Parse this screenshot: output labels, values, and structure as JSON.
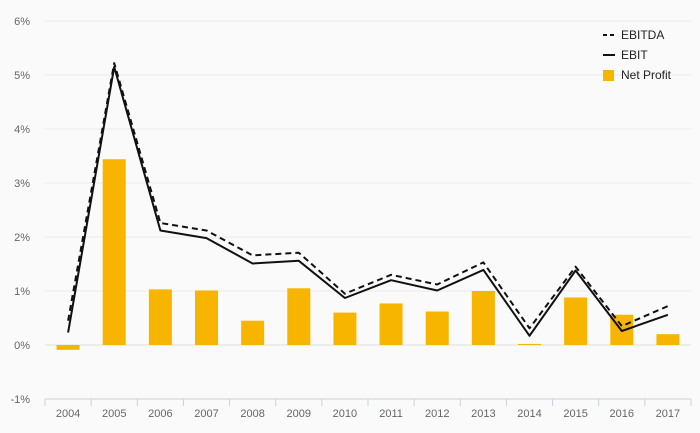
{
  "chart_data": {
    "type": "bar",
    "categories": [
      "2004",
      "2005",
      "2006",
      "2007",
      "2008",
      "2009",
      "2010",
      "2011",
      "2012",
      "2013",
      "2014",
      "2015",
      "2016",
      "2017"
    ],
    "y_ticks": [
      "-1%",
      "0%",
      "1%",
      "2%",
      "3%",
      "4%",
      "5%",
      "6%"
    ],
    "ylim": [
      -1,
      6
    ],
    "grid": true,
    "legend_position": "top-right",
    "series": [
      {
        "name": "EBITDA",
        "type": "line",
        "style": "dashed",
        "color": "#111111",
        "values": [
          0.45,
          5.22,
          2.26,
          2.12,
          1.66,
          1.71,
          0.95,
          1.3,
          1.12,
          1.53,
          0.31,
          1.45,
          0.35,
          0.72
        ]
      },
      {
        "name": "EBIT",
        "type": "line",
        "style": "solid",
        "color": "#111111",
        "values": [
          0.23,
          5.15,
          2.12,
          1.98,
          1.51,
          1.56,
          0.87,
          1.2,
          1.01,
          1.39,
          0.17,
          1.38,
          0.26,
          0.56
        ]
      },
      {
        "name": "Net Profit",
        "type": "bar",
        "color": "#f7b500",
        "values": [
          -0.09,
          3.44,
          1.03,
          1.01,
          0.45,
          1.05,
          0.6,
          0.77,
          0.62,
          1.0,
          0.02,
          0.88,
          0.56,
          0.2
        ]
      }
    ]
  }
}
